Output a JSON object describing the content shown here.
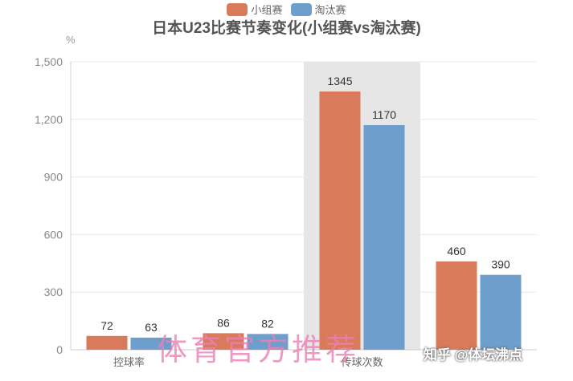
{
  "chart_data": {
    "type": "bar",
    "title": "日本U23比赛节奏变化(小组赛vs淘汰赛)",
    "unit_label": "%",
    "categories": [
      "控球率",
      "",
      "传球次数",
      ""
    ],
    "series": [
      {
        "name": "小组赛",
        "color": "#d97b5a",
        "values": [
          72,
          86,
          1345,
          460
        ]
      },
      {
        "name": "淘汰赛",
        "color": "#6e9ecb",
        "values": [
          63,
          82,
          1170,
          390
        ]
      }
    ],
    "ylim": [
      0,
      1500
    ],
    "yticks": [
      "0",
      "300",
      "600",
      "900",
      "1,200",
      "1,500"
    ],
    "highlighted_category": 2,
    "grid": true,
    "legend_position": "top-center"
  },
  "watermark_text": "体育官方推荐",
  "credit_text": "知乎 @体坛沸点"
}
